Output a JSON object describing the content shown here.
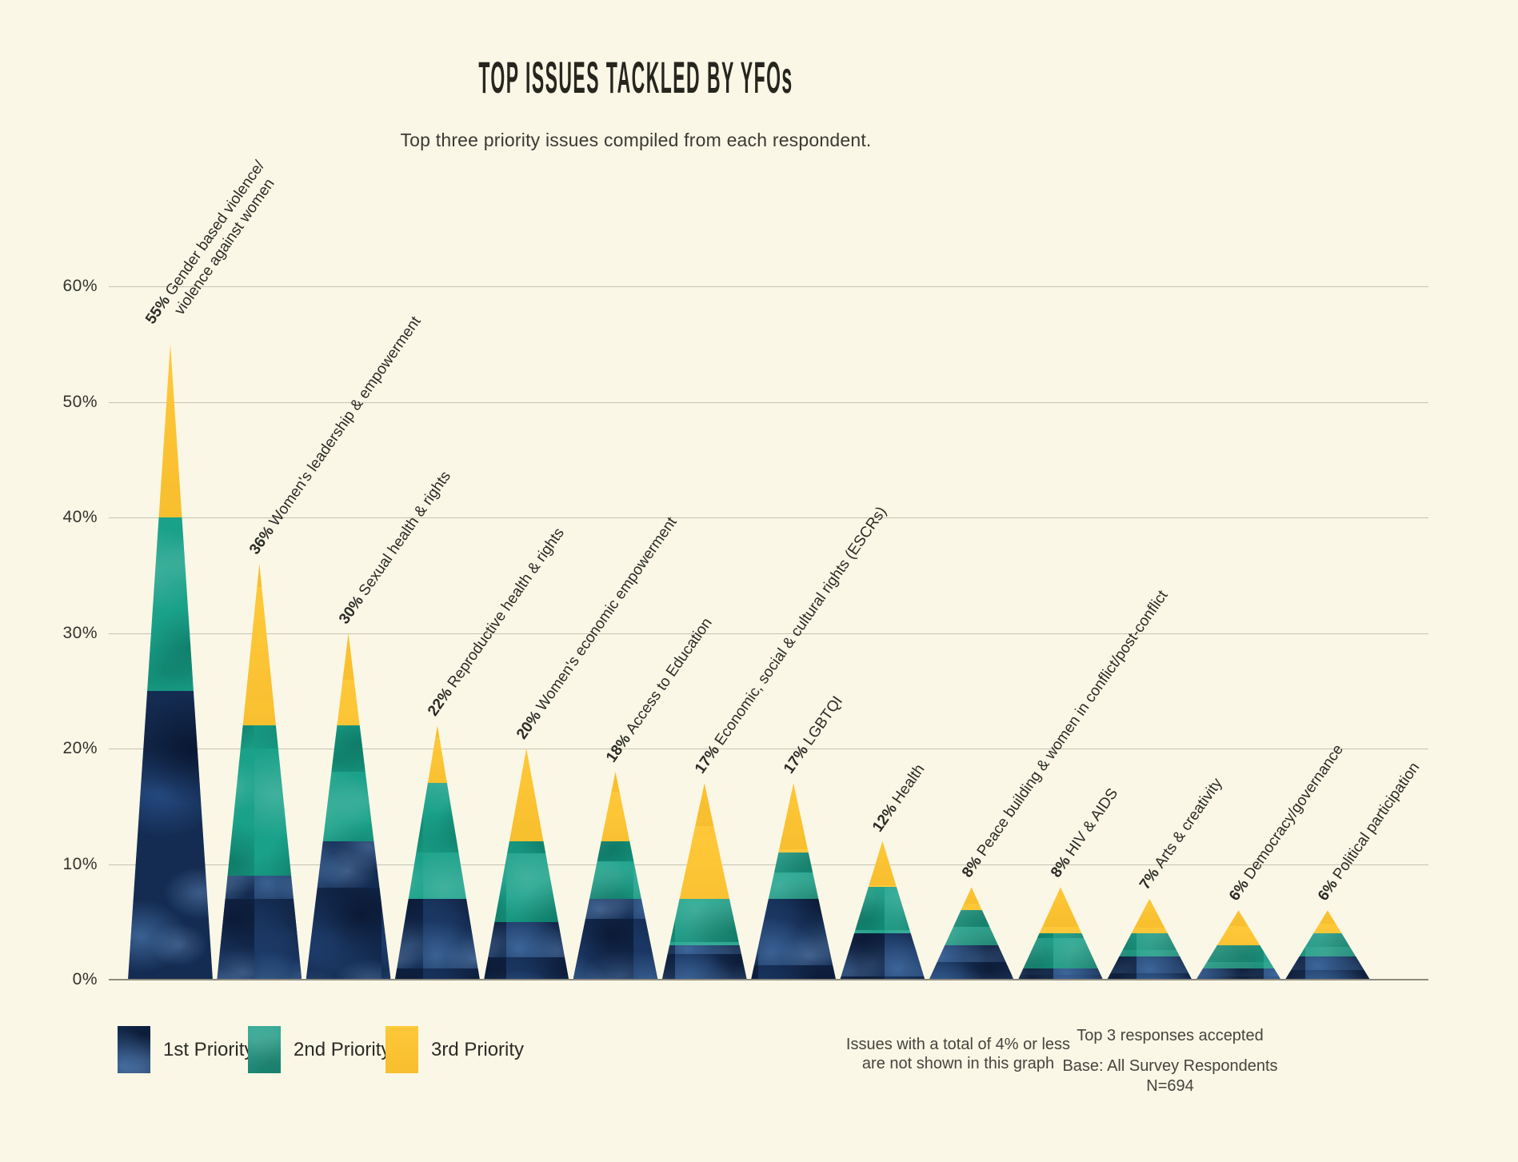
{
  "header": {
    "title": "TOP ISSUES TACKLED BY YFOs",
    "subtitle": "Top three priority issues compiled from each respondent."
  },
  "chart_data": {
    "type": "bar",
    "stacked": true,
    "shape": "triangle-stacked-bars",
    "title": "TOP ISSUES TACKLED BY YFOs",
    "xlabel": "",
    "ylabel": "",
    "ylim": [
      0,
      60
    ],
    "yticks": [
      "0%",
      "10%",
      "20%",
      "30%",
      "40%",
      "50%",
      "60%"
    ],
    "grid": true,
    "legend_position": "bottom-left",
    "series_names": [
      "1st Priority",
      "2nd Priority",
      "3rd Priority"
    ],
    "categories": [
      {
        "name": "Gender based violence/violence against women",
        "slug": "gender-based-violence",
        "total": 55,
        "pct_label": "55%",
        "name_lines": [
          "Gender based violence/",
          "violence against women"
        ],
        "segments": {
          "first": 25,
          "second": 15,
          "third": 15
        }
      },
      {
        "name": "Women's leadership & empowerment",
        "slug": "womens-leadership-empowerment",
        "total": 36,
        "pct_label": "36%",
        "name_lines": [
          "Women's leadership & empowerment"
        ],
        "segments": {
          "first": 9,
          "second": 13,
          "third": 14
        }
      },
      {
        "name": "Sexual health & rights",
        "slug": "sexual-health-rights",
        "total": 30,
        "pct_label": "30%",
        "name_lines": [
          "Sexual health & rights"
        ],
        "segments": {
          "first": 12,
          "second": 10,
          "third": 8
        }
      },
      {
        "name": "Reproductive health & rights",
        "slug": "reproductive-health-rights",
        "total": 22,
        "pct_label": "22%",
        "name_lines": [
          "Reproductive health & rights"
        ],
        "segments": {
          "first": 7,
          "second": 10,
          "third": 5
        }
      },
      {
        "name": "Women's economic empowerment",
        "slug": "womens-economic-empowerment",
        "total": 20,
        "pct_label": "20%",
        "name_lines": [
          "Women's economic empowerment"
        ],
        "segments": {
          "first": 5,
          "second": 7,
          "third": 8
        }
      },
      {
        "name": "Access to Education",
        "slug": "access-to-education",
        "total": 18,
        "pct_label": "18%",
        "name_lines": [
          "Access to Education"
        ],
        "segments": {
          "first": 7,
          "second": 5,
          "third": 6
        }
      },
      {
        "name": "Economic, social & cultural rights (ESCRs)",
        "slug": "escrs",
        "total": 17,
        "pct_label": "17%",
        "name_lines": [
          "Economic, social & cultural rights (ESCRs)"
        ],
        "segments": {
          "first": 3,
          "second": 4,
          "third": 10
        }
      },
      {
        "name": "LGBTQI",
        "slug": "lgbtqi",
        "total": 17,
        "pct_label": "17%",
        "name_lines": [
          "LGBTQI"
        ],
        "segments": {
          "first": 7,
          "second": 4,
          "third": 6
        }
      },
      {
        "name": "Health",
        "slug": "health",
        "total": 12,
        "pct_label": "12%",
        "name_lines": [
          "Health"
        ],
        "segments": {
          "first": 4,
          "second": 4,
          "third": 4
        }
      },
      {
        "name": "Peace building & women in conflict/post-conflict",
        "slug": "peace-building",
        "total": 8,
        "pct_label": "8%",
        "name_lines": [
          "Peace building & women in conflict/post-conflict"
        ],
        "segments": {
          "first": 3,
          "second": 3,
          "third": 2
        }
      },
      {
        "name": "HIV & AIDS",
        "slug": "hiv-aids",
        "total": 8,
        "pct_label": "8%",
        "name_lines": [
          "HIV & AIDS"
        ],
        "segments": {
          "first": 1,
          "second": 3,
          "third": 4
        }
      },
      {
        "name": "Arts & creativity",
        "slug": "arts-creativity",
        "total": 7,
        "pct_label": "7%",
        "name_lines": [
          "Arts & creativity"
        ],
        "segments": {
          "first": 2,
          "second": 2,
          "third": 3
        }
      },
      {
        "name": "Democracy/governance",
        "slug": "democracy-governance",
        "total": 6,
        "pct_label": "6%",
        "name_lines": [
          "Democracy/governance"
        ],
        "segments": {
          "first": 1,
          "second": 2,
          "third": 3
        }
      },
      {
        "name": "Political participation",
        "slug": "political-participation",
        "total": 6,
        "pct_label": "6%",
        "name_lines": [
          "Political participation"
        ],
        "segments": {
          "first": 2,
          "second": 2,
          "third": 2
        }
      }
    ]
  },
  "legend": {
    "items": [
      {
        "label": "1st Priority",
        "color_key": "first_priority"
      },
      {
        "label": "2nd Priority",
        "color_key": "second_priority"
      },
      {
        "label": "3rd Priority",
        "color_key": "third_priority"
      }
    ]
  },
  "footnotes": {
    "left_line1": "Issues with a total of 4% or less",
    "left_line2": "are not shown in this graph",
    "right_line1": "Top 3 responses accepted",
    "right_line2": "Base: All Survey Respondents",
    "right_line3": "N=694"
  },
  "colors": {
    "first_priority": "#17325C",
    "second_priority": "#1AA189",
    "third_priority": "#FFC52F",
    "background": "#FBF7E6",
    "gridline": "#C6C2B2",
    "baseline": "#8E8A7C",
    "text": "#2E2E2A"
  }
}
